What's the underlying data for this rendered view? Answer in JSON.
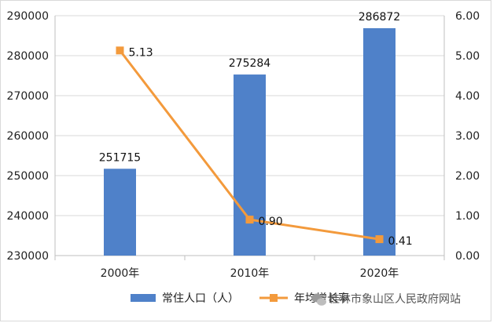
{
  "chart_data": {
    "type": "bar+line",
    "categories": [
      "2000年",
      "2010年",
      "2020年"
    ],
    "series": [
      {
        "name": "常住人口（人）",
        "type": "bar",
        "axis": "left",
        "color": "#4f81c9",
        "values": [
          251715,
          275284,
          286872
        ],
        "labels": [
          "251715",
          "275284",
          "286872"
        ]
      },
      {
        "name": "年均增长率",
        "type": "line",
        "axis": "right",
        "color": "#f39a3c",
        "values": [
          5.13,
          0.9,
          0.41
        ],
        "labels": [
          "5.13",
          "0.90",
          "0.41"
        ]
      }
    ],
    "y_left": {
      "min": 230000,
      "max": 290000,
      "ticks": [
        "230000",
        "240000",
        "250000",
        "260000",
        "270000",
        "280000",
        "290000"
      ]
    },
    "y_right": {
      "min": 0,
      "max": 6,
      "ticks": [
        "0.00",
        "1.00",
        "2.00",
        "3.00",
        "4.00",
        "5.00",
        "6.00"
      ]
    },
    "grid": true,
    "legend_position": "bottom"
  },
  "legend": {
    "bar_label": "常住人口（人）",
    "line_label": "年均增长率"
  },
  "watermark": {
    "text": "桂林市象山区人民政府网站",
    "icon": "wechat-icon"
  }
}
